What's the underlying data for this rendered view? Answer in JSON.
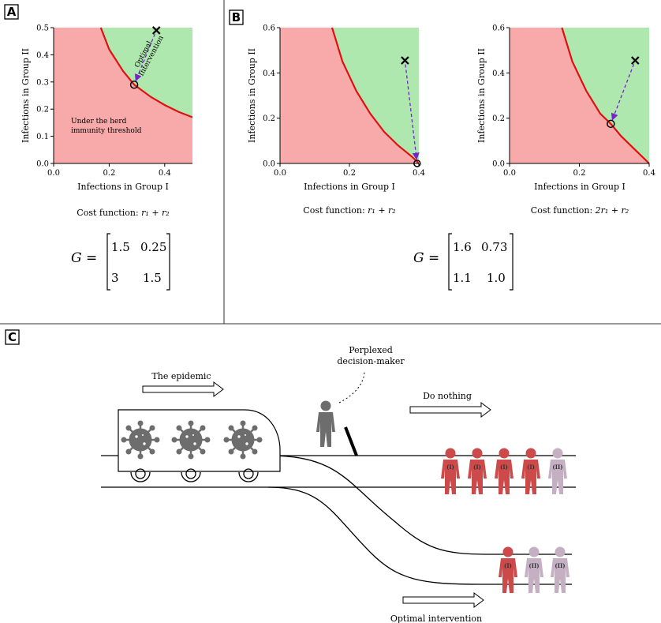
{
  "colors": {
    "below": "#f8aaaa",
    "above": "#aee8ae",
    "curve": "#dd1111",
    "arrow": "#7722cc",
    "person_i": "#cc4a4a",
    "person_ii": "#c5b0c3",
    "figure": "#6d6d6d",
    "virus": "#6d6d6d"
  },
  "panelA": {
    "label": "A",
    "xlabel": "Infections in Group I",
    "ylabel": "Infections in Group II",
    "xticks": [
      "0.0",
      "0.2",
      "0.4"
    ],
    "yticks": [
      "0.0",
      "0.1",
      "0.2",
      "0.3",
      "0.4",
      "0.5"
    ],
    "annotation_line1": "Optimal",
    "annotation_line2": "Intervention",
    "region_line1": "Under the herd",
    "region_line2": "immunity threshold",
    "cost_prefix": "Cost function: ",
    "cost_formula": "r₁ + r₂",
    "matrix_lhs": "G =",
    "matrix": [
      [
        "1.5",
        "0.25"
      ],
      [
        "3",
        "1.5"
      ]
    ]
  },
  "panelB": {
    "label": "B",
    "xlabel_left": "Infections in Group I",
    "ylabel_left": "Infections in Group II",
    "xticks_left": [
      "0.0",
      "0.2",
      "0.4"
    ],
    "yticks_left": [
      "0.0",
      "0.2",
      "0.4",
      "0.6"
    ],
    "xlabel_right": "Infections in Group I",
    "ylabel_right": "Infections in Group II",
    "xticks_right": [
      "0.0",
      "0.2",
      "0.4"
    ],
    "yticks_right": [
      "0.0",
      "0.2",
      "0.4",
      "0.6"
    ],
    "cost_prefix_left": "Cost function: ",
    "cost_formula_left": "r₁ + r₂",
    "cost_prefix_right": "Cost function: ",
    "cost_formula_right": "2r₁ + r₂",
    "matrix_lhs": "G =",
    "matrix": [
      [
        "1.6",
        "0.73"
      ],
      [
        "1.1",
        "1.0"
      ]
    ]
  },
  "panelC": {
    "label": "C",
    "epidemic_label": "The epidemic",
    "decider_line1": "Perplexed",
    "decider_line2": "decision-maker",
    "do_nothing_label": "Do nothing",
    "optimal_label": "Optimal intervention",
    "top_people": [
      "(I)",
      "(I)",
      "(I)",
      "(I)",
      "(II)"
    ],
    "bottom_people": [
      "(I)",
      "(II)",
      "(II)"
    ]
  },
  "chart_data": [
    {
      "type": "scatter",
      "panel": "A",
      "xlabel": "Infections in Group I",
      "ylabel": "Infections in Group II",
      "xlim": [
        0,
        0.5
      ],
      "ylim": [
        0,
        0.5
      ],
      "threshold_curve": {
        "x": [
          0.17,
          0.2,
          0.25,
          0.29,
          0.35,
          0.4,
          0.45,
          0.5
        ],
        "y": [
          0.5,
          0.42,
          0.34,
          0.29,
          0.245,
          0.215,
          0.19,
          0.17
        ]
      },
      "start_point": {
        "x": 0.37,
        "y": 0.49
      },
      "optimal_point": {
        "x": 0.29,
        "y": 0.29
      }
    },
    {
      "type": "scatter",
      "panel": "B-left",
      "xlabel": "Infections in Group I",
      "ylabel": "Infections in Group II",
      "xlim": [
        0,
        0.4
      ],
      "ylim": [
        0,
        0.6
      ],
      "threshold_curve": {
        "x": [
          0.15,
          0.18,
          0.22,
          0.26,
          0.3,
          0.34,
          0.38,
          0.4
        ],
        "y": [
          0.6,
          0.45,
          0.32,
          0.22,
          0.14,
          0.08,
          0.03,
          0.0
        ]
      },
      "start_point": {
        "x": 0.36,
        "y": 0.455
      },
      "optimal_point": {
        "x": 0.395,
        "y": 0.0
      }
    },
    {
      "type": "scatter",
      "panel": "B-right",
      "xlabel": "Infections in Group I",
      "ylabel": "Infections in Group II",
      "xlim": [
        0,
        0.4
      ],
      "ylim": [
        0,
        0.6
      ],
      "threshold_curve": {
        "x": [
          0.15,
          0.18,
          0.22,
          0.26,
          0.29,
          0.32,
          0.36,
          0.4
        ],
        "y": [
          0.6,
          0.45,
          0.32,
          0.22,
          0.175,
          0.12,
          0.06,
          0.0
        ]
      },
      "start_point": {
        "x": 0.36,
        "y": 0.455
      },
      "optimal_point": {
        "x": 0.29,
        "y": 0.175
      }
    }
  ]
}
